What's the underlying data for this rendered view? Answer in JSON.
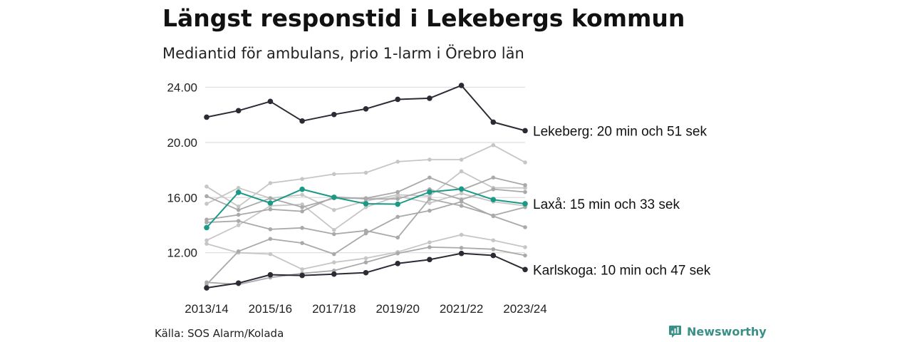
{
  "header": {
    "title": "Längst responstid i Lekebergs kommun",
    "subtitle": "Mediantid för ambulans, prio 1-larm i Örebro län"
  },
  "footer": {
    "source": "Källa: SOS Alarm/Kolada",
    "brand": "Newsworthy",
    "brand_color": "#3a8f86"
  },
  "chart_data": {
    "type": "line",
    "x": [
      "2013/14",
      "2014/15",
      "2015/16",
      "2016/17",
      "2017/18",
      "2018/19",
      "2019/20",
      "2020/21",
      "2021/22",
      "2022/23",
      "2023/24"
    ],
    "x_tick_labels": [
      "2013/14",
      "2015/16",
      "2017/18",
      "2019/20",
      "2021/22",
      "2023/24"
    ],
    "y_tick_labels": [
      "12.00",
      "16.00",
      "20.00",
      "24.00"
    ],
    "y_ticks": [
      12,
      16,
      20,
      24
    ],
    "ylim": [
      9.4,
      24.9
    ],
    "grid": true,
    "colors": {
      "dark": "#2b2b35",
      "highlight": "#1a9a86",
      "background_series": [
        "#c6c6c6",
        "#a9a9a9"
      ]
    },
    "series": [
      {
        "name": "Lekeberg",
        "label": "Lekeberg: 20 min och 51 sek",
        "style": "dark",
        "values": [
          21.83,
          22.3,
          22.97,
          21.55,
          22.02,
          22.43,
          23.12,
          23.2,
          24.13,
          21.47,
          20.85
        ]
      },
      {
        "name": "Laxå",
        "label": "Laxå: 15 min och 33 sek",
        "style": "highlight",
        "values": [
          13.82,
          16.38,
          15.6,
          16.6,
          16.02,
          15.55,
          15.52,
          16.4,
          16.62,
          15.85,
          15.55
        ]
      },
      {
        "name": "Karlskoga",
        "label": "Karlskoga: 10 min och 47 sek",
        "style": "dark",
        "values": [
          9.45,
          9.8,
          10.4,
          10.35,
          10.45,
          10.55,
          11.22,
          11.5,
          11.95,
          11.8,
          10.78
        ]
      },
      {
        "style": "light",
        "values": [
          16.8,
          15.35,
          17.05,
          17.35,
          17.7,
          17.8,
          18.6,
          18.75,
          18.75,
          19.8,
          18.55
        ]
      },
      {
        "style": "mid",
        "values": [
          16.1,
          15.1,
          15.95,
          15.3,
          15.95,
          15.95,
          16.4,
          17.45,
          16.55,
          17.45,
          16.9
        ]
      },
      {
        "style": "light",
        "values": [
          15.55,
          16.7,
          15.95,
          16.2,
          15.1,
          15.75,
          16.2,
          16.1,
          17.9,
          16.7,
          16.7
        ]
      },
      {
        "style": "mid",
        "values": [
          14.4,
          14.75,
          15.15,
          15.0,
          16.05,
          15.9,
          15.9,
          16.6,
          15.85,
          16.6,
          16.4
        ]
      },
      {
        "style": "light",
        "values": [
          12.9,
          14.0,
          15.4,
          15.5,
          13.65,
          15.3,
          16.1,
          15.6,
          16.3,
          15.7,
          15.4
        ]
      },
      {
        "style": "mid",
        "values": [
          14.2,
          14.3,
          13.7,
          13.8,
          13.35,
          13.6,
          13.1,
          15.9,
          15.4,
          14.7,
          15.3
        ]
      },
      {
        "style": "light",
        "values": [
          12.65,
          12.0,
          11.9,
          10.8,
          11.3,
          11.6,
          12.05,
          12.75,
          13.3,
          12.9,
          12.4
        ]
      },
      {
        "style": "mid",
        "values": [
          9.7,
          12.1,
          13.0,
          12.7,
          11.9,
          13.4,
          14.6,
          15.05,
          15.7,
          14.65,
          13.85
        ]
      },
      {
        "style": "mid",
        "values": [
          9.85,
          9.7,
          10.2,
          10.5,
          10.7,
          11.3,
          11.95,
          12.4,
          12.35,
          12.25,
          11.8
        ]
      }
    ]
  }
}
